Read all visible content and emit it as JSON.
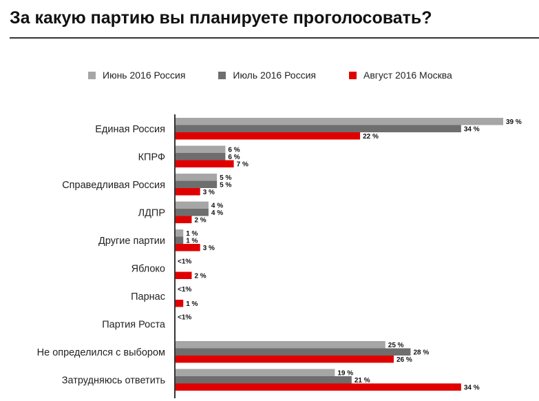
{
  "title": "За какую партию вы планируете проголосовать?",
  "colors": {
    "series": [
      "#a6a6a6",
      "#6e6e6e",
      "#e00000"
    ],
    "axis": "#333333",
    "title_rule": "#333333"
  },
  "chart_data": {
    "type": "bar",
    "orientation": "horizontal",
    "title": "За какую партию вы планируете проголосовать?",
    "xlabel": "",
    "ylabel": "",
    "xlim": [
      0,
      39
    ],
    "grid": false,
    "legend_position": "top",
    "categories": [
      "Единая Россия",
      "КПРФ",
      "Справедливая Россия",
      "ЛДПР",
      "Другие партии",
      "Яблоко",
      "Парнас",
      "Партия Роста",
      "Не определился с выбором",
      "Затрудняюсь ответить"
    ],
    "series": [
      {
        "name": "Июнь 2016 Россия",
        "values": [
          39,
          6,
          5,
          4,
          1,
          0.5,
          0.5,
          0.5,
          25,
          19
        ],
        "labels": [
          "39 %",
          "6 %",
          "5 %",
          "4 %",
          "1 %",
          "<1%",
          "<1%",
          "<1%",
          "25 %",
          "19 %"
        ]
      },
      {
        "name": "Июль 2016 Россия",
        "values": [
          34,
          6,
          5,
          4,
          1,
          null,
          null,
          null,
          28,
          21
        ],
        "labels": [
          "34 %",
          "6 %",
          "5 %",
          "4 %",
          "1 %",
          "",
          "",
          "",
          "28 %",
          "21 %"
        ]
      },
      {
        "name": "Август 2016 Москва",
        "values": [
          22,
          7,
          3,
          2,
          3,
          2,
          1,
          null,
          26,
          34
        ],
        "labels": [
          "22 %",
          "7 %",
          "3 %",
          "2 %",
          "3 %",
          "2 %",
          "1 %",
          "",
          "26 %",
          "34 %"
        ]
      }
    ]
  }
}
